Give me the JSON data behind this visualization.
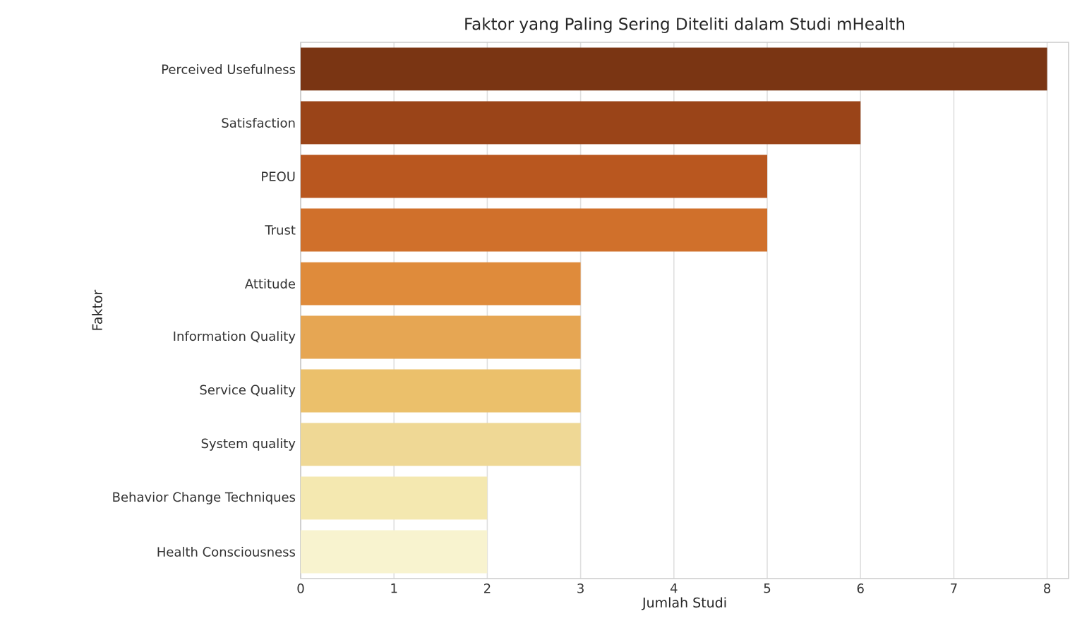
{
  "chart_data": {
    "type": "bar",
    "orientation": "horizontal",
    "title": "Faktor yang Paling Sering Diteliti dalam Studi mHealth",
    "xlabel": "Jumlah Studi",
    "ylabel": "Faktor",
    "categories": [
      "Perceived Usefulness",
      "Satisfaction",
      "PEOU",
      "Trust",
      "Attitude",
      "Information Quality",
      "Service Quality",
      "System quality",
      "Behavior Change Techniques",
      "Health Consciousness"
    ],
    "values": [
      8,
      6,
      5,
      5,
      3,
      3,
      3,
      3,
      2,
      2
    ],
    "colors": [
      "#7a3513",
      "#9a4418",
      "#b9571f",
      "#d0702b",
      "#df8b3b",
      "#e6a653",
      "#ebc06b",
      "#efd895",
      "#f4e8b0",
      "#f8f3cf"
    ],
    "xlim": [
      0,
      8.23
    ],
    "xticks": [
      0,
      1,
      2,
      3,
      4,
      5,
      6,
      7,
      8
    ],
    "grid": "x"
  }
}
